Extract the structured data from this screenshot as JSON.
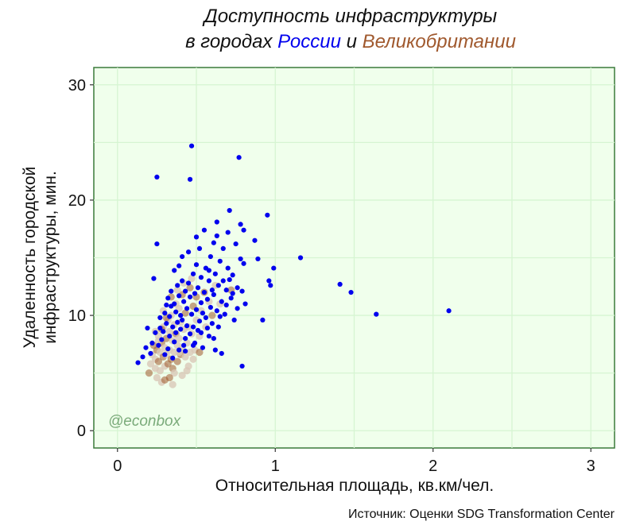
{
  "chart_data": {
    "type": "scatter",
    "title_line1": "Доступность инфраструктуры",
    "title_line2_prefix": "в городах ",
    "title_russia": "России",
    "title_joiner": " и ",
    "title_uk": "Великобритании",
    "xlabel": "Относительная площадь, кв.км/чел.",
    "ylabel_line1": "Удаленность городской",
    "ylabel_line2": "инфраструктуры, мин.",
    "source": "Источник: Оценки SDG Transformation Center",
    "watermark": "@econbox",
    "xlim": [
      -0.15,
      3.15
    ],
    "ylim": [
      -1.5,
      31.5
    ],
    "x_ticks": [
      0,
      1,
      2,
      3
    ],
    "x_tick_labels": [
      "0",
      "1",
      "2",
      "3"
    ],
    "y_ticks": [
      0,
      10,
      20,
      30
    ],
    "y_tick_labels": [
      "0",
      "10",
      "20",
      "30"
    ],
    "grid": true,
    "colors": {
      "russia": "#0000ee",
      "uk": "#a0592e",
      "uk_light": "#d9c8b8",
      "panel": "#f0ffec",
      "panel_border": "#3a7a3a",
      "grid": "#d6f5d2",
      "watermark": "#7aaa7a"
    },
    "series": [
      {
        "name": "Великобритания",
        "color": "#a0592e",
        "points": [
          [
            0.2,
            5.0
          ],
          [
            0.21,
            5.8
          ],
          [
            0.22,
            6.6
          ],
          [
            0.23,
            7.4
          ],
          [
            0.24,
            5.4
          ],
          [
            0.24,
            6.2
          ],
          [
            0.25,
            7.0
          ],
          [
            0.25,
            4.6
          ],
          [
            0.26,
            8.2
          ],
          [
            0.26,
            6.0
          ],
          [
            0.27,
            5.2
          ],
          [
            0.27,
            6.8
          ],
          [
            0.28,
            7.6
          ],
          [
            0.28,
            4.2
          ],
          [
            0.29,
            9.0
          ],
          [
            0.29,
            6.4
          ],
          [
            0.3,
            5.6
          ],
          [
            0.3,
            7.2
          ],
          [
            0.31,
            8.0
          ],
          [
            0.31,
            6.6
          ],
          [
            0.32,
            9.6
          ],
          [
            0.32,
            5.8
          ],
          [
            0.33,
            7.0
          ],
          [
            0.33,
            8.6
          ],
          [
            0.34,
            6.2
          ],
          [
            0.34,
            10.0
          ],
          [
            0.35,
            7.8
          ],
          [
            0.35,
            5.4
          ],
          [
            0.36,
            9.2
          ],
          [
            0.36,
            6.8
          ],
          [
            0.37,
            8.4
          ],
          [
            0.37,
            11.0
          ],
          [
            0.38,
            7.4
          ],
          [
            0.38,
            6.0
          ],
          [
            0.39,
            10.6
          ],
          [
            0.39,
            8.0
          ],
          [
            0.4,
            6.6
          ],
          [
            0.4,
            9.4
          ],
          [
            0.41,
            7.2
          ],
          [
            0.41,
            11.8
          ],
          [
            0.42,
            8.8
          ],
          [
            0.43,
            6.4
          ],
          [
            0.43,
            10.2
          ],
          [
            0.44,
            7.6
          ],
          [
            0.45,
            9.0
          ],
          [
            0.46,
            12.4
          ],
          [
            0.46,
            6.8
          ],
          [
            0.47,
            8.4
          ],
          [
            0.48,
            10.8
          ],
          [
            0.49,
            7.0
          ],
          [
            0.5,
            9.6
          ],
          [
            0.5,
            11.6
          ],
          [
            0.52,
            8.2
          ],
          [
            0.53,
            10.4
          ],
          [
            0.55,
            12.0
          ],
          [
            0.56,
            9.0
          ],
          [
            0.58,
            11.2
          ],
          [
            0.6,
            10.0
          ],
          [
            0.62,
            12.6
          ],
          [
            0.65,
            11.0
          ],
          [
            0.72,
            12.2
          ],
          [
            0.41,
            4.8
          ],
          [
            0.35,
            4.0
          ],
          [
            0.3,
            4.4
          ],
          [
            0.45,
            5.6
          ],
          [
            0.26,
            7.8
          ],
          [
            0.28,
            8.8
          ],
          [
            0.36,
            5.0
          ],
          [
            0.39,
            6.8
          ],
          [
            0.33,
            4.6
          ],
          [
            0.44,
            5.2
          ],
          [
            0.48,
            6.2
          ],
          [
            0.52,
            6.8
          ],
          [
            0.24,
            8.6
          ],
          [
            0.29,
            10.4
          ],
          [
            0.34,
            11.6
          ],
          [
            0.42,
            12.8
          ],
          [
            0.38,
            12.2
          ],
          [
            0.31,
            9.8
          ],
          [
            0.47,
            13.2
          ]
        ]
      },
      {
        "name": "Россия",
        "color": "#0000ee",
        "points": [
          [
            0.13,
            5.9
          ],
          [
            0.16,
            6.4
          ],
          [
            0.18,
            7.2
          ],
          [
            0.19,
            8.9
          ],
          [
            0.21,
            6.7
          ],
          [
            0.23,
            13.2
          ],
          [
            0.24,
            8.5
          ],
          [
            0.25,
            16.2
          ],
          [
            0.25,
            22.0
          ],
          [
            0.26,
            7.4
          ],
          [
            0.27,
            9.8
          ],
          [
            0.28,
            7.9
          ],
          [
            0.29,
            8.6
          ],
          [
            0.3,
            10.2
          ],
          [
            0.3,
            6.6
          ],
          [
            0.31,
            9.3
          ],
          [
            0.32,
            11.5
          ],
          [
            0.32,
            7.1
          ],
          [
            0.33,
            8.2
          ],
          [
            0.34,
            10.8
          ],
          [
            0.34,
            12.1
          ],
          [
            0.35,
            6.3
          ],
          [
            0.35,
            9.0
          ],
          [
            0.36,
            7.7
          ],
          [
            0.36,
            11.0
          ],
          [
            0.37,
            8.5
          ],
          [
            0.37,
            10.3
          ],
          [
            0.38,
            12.6
          ],
          [
            0.38,
            9.4
          ],
          [
            0.39,
            7.0
          ],
          [
            0.39,
            11.7
          ],
          [
            0.4,
            8.8
          ],
          [
            0.4,
            10.0
          ],
          [
            0.41,
            13.0
          ],
          [
            0.41,
            9.6
          ],
          [
            0.42,
            7.4
          ],
          [
            0.42,
            11.2
          ],
          [
            0.43,
            12.1
          ],
          [
            0.43,
            8.0
          ],
          [
            0.44,
            10.6
          ],
          [
            0.44,
            9.1
          ],
          [
            0.45,
            15.5
          ],
          [
            0.45,
            12.8
          ],
          [
            0.46,
            8.4
          ],
          [
            0.46,
            11.6
          ],
          [
            0.46,
            21.8
          ],
          [
            0.47,
            24.7
          ],
          [
            0.47,
            10.1
          ],
          [
            0.48,
            13.6
          ],
          [
            0.48,
            9.0
          ],
          [
            0.49,
            7.6
          ],
          [
            0.49,
            11.9
          ],
          [
            0.5,
            14.4
          ],
          [
            0.5,
            10.5
          ],
          [
            0.51,
            8.7
          ],
          [
            0.51,
            12.4
          ],
          [
            0.52,
            15.8
          ],
          [
            0.52,
            9.5
          ],
          [
            0.53,
            11.1
          ],
          [
            0.53,
            13.3
          ],
          [
            0.54,
            7.2
          ],
          [
            0.54,
            10.2
          ],
          [
            0.55,
            12.0
          ],
          [
            0.55,
            17.4
          ],
          [
            0.56,
            9.8
          ],
          [
            0.56,
            14.1
          ],
          [
            0.57,
            11.4
          ],
          [
            0.58,
            8.2
          ],
          [
            0.58,
            13.0
          ],
          [
            0.59,
            10.7
          ],
          [
            0.59,
            15.1
          ],
          [
            0.6,
            12.2
          ],
          [
            0.6,
            9.3
          ],
          [
            0.61,
            16.3
          ],
          [
            0.61,
            11.8
          ],
          [
            0.62,
            7.0
          ],
          [
            0.62,
            13.6
          ],
          [
            0.63,
            10.4
          ],
          [
            0.63,
            18.1
          ],
          [
            0.64,
            12.6
          ],
          [
            0.64,
            9.0
          ],
          [
            0.65,
            14.7
          ],
          [
            0.66,
            11.2
          ],
          [
            0.66,
            6.7
          ],
          [
            0.67,
            15.8
          ],
          [
            0.67,
            13.0
          ],
          [
            0.68,
            10.1
          ],
          [
            0.69,
            12.2
          ],
          [
            0.7,
            17.2
          ],
          [
            0.7,
            14.1
          ],
          [
            0.71,
            19.1
          ],
          [
            0.72,
            11.5
          ],
          [
            0.73,
            13.5
          ],
          [
            0.74,
            9.6
          ],
          [
            0.75,
            16.2
          ],
          [
            0.76,
            12.4
          ],
          [
            0.77,
            23.7
          ],
          [
            0.78,
            17.9
          ],
          [
            0.78,
            14.9
          ],
          [
            0.79,
            12.1
          ],
          [
            0.79,
            5.6
          ],
          [
            0.8,
            17.4
          ],
          [
            0.8,
            14.5
          ],
          [
            0.81,
            11.0
          ],
          [
            0.87,
            16.5
          ],
          [
            0.89,
            14.9
          ],
          [
            0.92,
            9.6
          ],
          [
            0.95,
            18.7
          ],
          [
            0.96,
            13.0
          ],
          [
            0.97,
            12.6
          ],
          [
            0.99,
            14.1
          ],
          [
            1.16,
            15.0
          ],
          [
            1.41,
            12.7
          ],
          [
            1.48,
            12.0
          ],
          [
            1.64,
            10.1
          ],
          [
            2.1,
            10.4
          ],
          [
            0.22,
            7.6
          ],
          [
            0.27,
            8.9
          ],
          [
            0.33,
            9.9
          ],
          [
            0.31,
            10.9
          ],
          [
            0.43,
            6.9
          ],
          [
            0.48,
            7.4
          ],
          [
            0.53,
            8.5
          ],
          [
            0.57,
            8.9
          ],
          [
            0.61,
            8.0
          ],
          [
            0.65,
            9.9
          ],
          [
            0.69,
            10.9
          ],
          [
            0.73,
            11.9
          ],
          [
            0.41,
            15.1
          ],
          [
            0.5,
            16.8
          ],
          [
            0.58,
            13.9
          ],
          [
            0.63,
            16.9
          ],
          [
            0.71,
            13.1
          ],
          [
            0.76,
            10.6
          ],
          [
            0.36,
            13.9
          ],
          [
            0.39,
            14.3
          ]
        ]
      }
    ]
  }
}
